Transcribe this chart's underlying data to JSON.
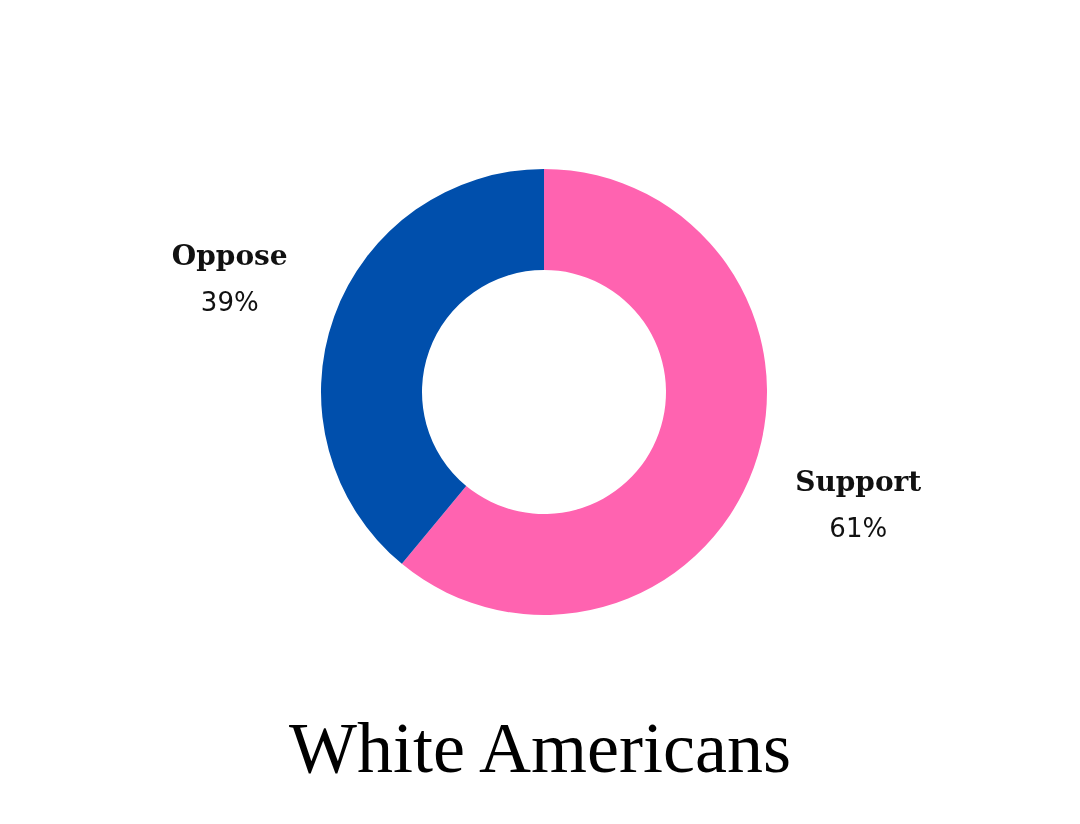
{
  "chart_data": {
    "type": "donut",
    "title": "White Americans",
    "categories": [
      "Support",
      "Oppose"
    ],
    "values": [
      61,
      39
    ],
    "value_labels": [
      "61%",
      "39%"
    ],
    "colors": [
      "#ff63b0",
      "#004fac"
    ]
  }
}
